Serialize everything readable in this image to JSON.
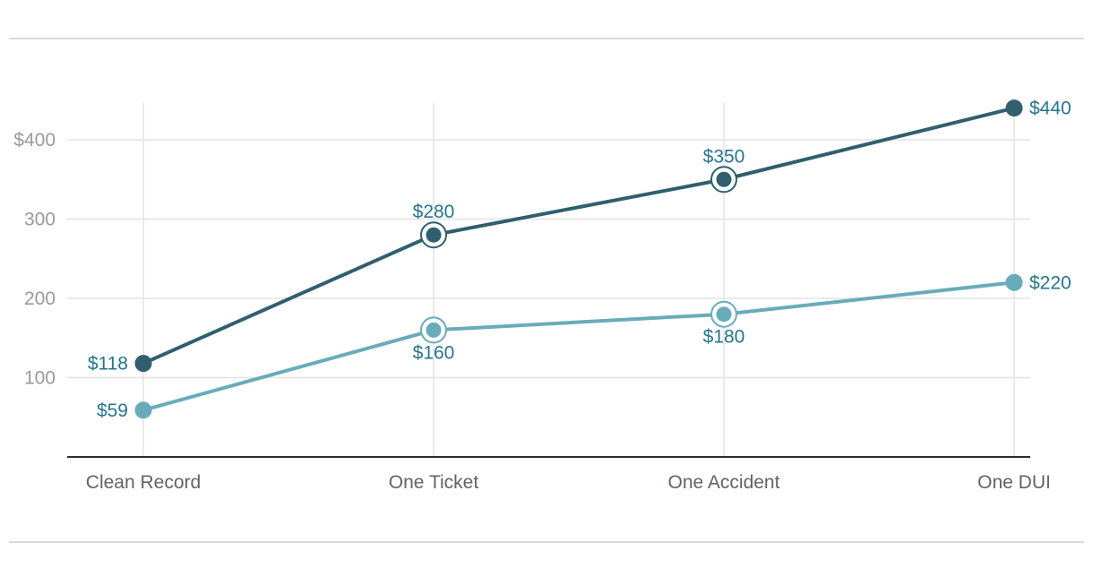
{
  "page": {
    "background": "#ffffff",
    "divider_color": "#d9d9d9"
  },
  "chart_data": {
    "type": "line",
    "title": "",
    "xlabel": "",
    "ylabel": "",
    "categories": [
      "Clean Record",
      "One Ticket",
      "One Accident",
      "One DUI"
    ],
    "series": [
      {
        "name": "dark-teal-series",
        "color": "#305f6d",
        "values": [
          118,
          280,
          350,
          440
        ],
        "labels": [
          "$118",
          "$280",
          "$350",
          "$440"
        ],
        "label_pos": [
          "left",
          "above",
          "above",
          "right"
        ],
        "ring": [
          false,
          true,
          true,
          false
        ]
      },
      {
        "name": "light-teal-series",
        "color": "#68acba",
        "values": [
          59,
          160,
          180,
          220
        ],
        "labels": [
          "$59",
          "$160",
          "$180",
          "$220"
        ],
        "label_pos": [
          "left",
          "below",
          "below",
          "right"
        ],
        "ring": [
          false,
          true,
          true,
          false
        ]
      }
    ],
    "y_ticks": [
      {
        "value": 400,
        "label": "$400"
      },
      {
        "value": 300,
        "label": "300"
      },
      {
        "value": 200,
        "label": "200"
      },
      {
        "value": 100,
        "label": "100"
      }
    ],
    "ylim": [
      0,
      465
    ],
    "grid": true,
    "legend": "none",
    "label_color": "#26758a",
    "tick_color": "#9a9a9a",
    "xlabel_color": "#5f6368",
    "axis_color": "#2d2d2d",
    "grid_color": "#e3e3e3"
  }
}
